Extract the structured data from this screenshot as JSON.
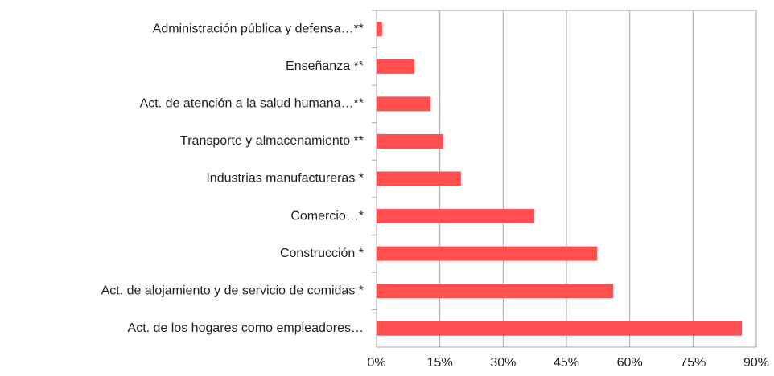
{
  "chart_data": {
    "type": "bar",
    "orientation": "horizontal",
    "categories": [
      "Administración pública y defensa…**",
      "Enseñanza **",
      "Act. de atención a la salud humana…**",
      "Transporte y almacenamiento **",
      "Industrias manufactureras *",
      "Comercio…*",
      "Construcción *",
      "Act. de alojamiento y de servicio de comidas *",
      "Act. de los hogares como empleadores…"
    ],
    "values": [
      1.3,
      9.0,
      12.8,
      15.8,
      20.0,
      37.4,
      52.3,
      56.1,
      86.6
    ],
    "color": "#ff4f4f",
    "xlim": [
      0,
      90
    ],
    "xticks": [
      {
        "value": 0,
        "label": "0%"
      },
      {
        "value": 15,
        "label": "15%"
      },
      {
        "value": 30,
        "label": "30%"
      },
      {
        "value": 45,
        "label": "45%"
      },
      {
        "value": 60,
        "label": "60%"
      },
      {
        "value": 75,
        "label": "75%"
      },
      {
        "value": 90,
        "label": "90%"
      }
    ],
    "grid": true
  }
}
